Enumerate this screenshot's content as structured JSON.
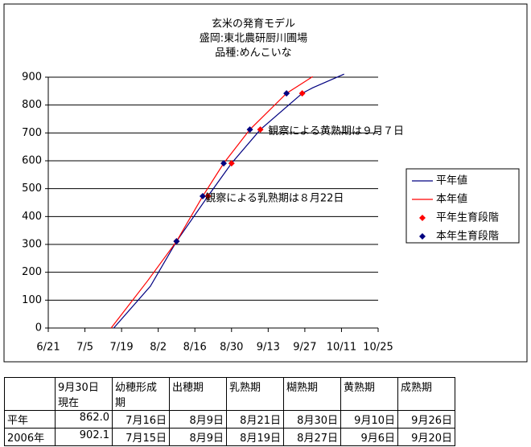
{
  "chart_data": {
    "type": "line",
    "title": [
      "玄米の発育モデル",
      "盛岡:東北農研厨川圃場",
      "品種:めんこいな"
    ],
    "xlim": [
      "6/21",
      "10/25"
    ],
    "xticks": [
      "6/21",
      "7/5",
      "7/19",
      "8/2",
      "8/16",
      "8/30",
      "9/13",
      "9/27",
      "10/11",
      "10/25"
    ],
    "ylim": [
      0,
      900
    ],
    "yticks": [
      0,
      100,
      200,
      300,
      400,
      500,
      600,
      700,
      800,
      900
    ],
    "grid": true,
    "legend": "right",
    "series": [
      {
        "name": "平年値",
        "color": "#000080",
        "mode": "line",
        "x": [
          "7/16",
          "7/30",
          "8/9",
          "8/21",
          "8/30",
          "9/10",
          "9/26",
          "9/30",
          "10/12"
        ],
        "values": [
          0,
          150,
          311,
          473,
          591,
          712,
          842,
          862,
          911
        ]
      },
      {
        "name": "本年値",
        "color": "#ff0000",
        "mode": "line",
        "x": [
          "7/15",
          "7/29",
          "8/9",
          "8/19",
          "8/27",
          "9/6",
          "9/20",
          "9/30"
        ],
        "values": [
          0,
          170,
          311,
          473,
          591,
          712,
          842,
          902
        ]
      },
      {
        "name": "平年生育段階",
        "color": "#ff0000",
        "mode": "diamond",
        "x": [
          "8/9",
          "8/21",
          "8/30",
          "9/10",
          "9/26"
        ],
        "values": [
          311,
          473,
          591,
          712,
          842
        ]
      },
      {
        "name": "本年生育段階",
        "color": "#000080",
        "mode": "diamond",
        "x": [
          "8/9",
          "8/19",
          "8/27",
          "9/6",
          "9/20"
        ],
        "values": [
          311,
          473,
          591,
          712,
          842
        ]
      }
    ],
    "annotations": [
      {
        "text": "観察による黄熟期は９月７日",
        "x": "9/13",
        "y": 705
      },
      {
        "text": "観察による乳熟期は８月22日",
        "x": "8/20",
        "y": 465
      }
    ]
  },
  "table": {
    "header": [
      "",
      "9月30日\n現在",
      "幼穂形成\n期",
      "出穂期",
      "乳熟期",
      "糊熟期",
      "黄熟期",
      "成熟期"
    ],
    "rows": [
      [
        "平年",
        "862.0",
        "7月16日",
        "8月9日",
        "8月21日",
        "8月30日",
        "9月10日",
        "9月26日"
      ],
      [
        "2006年",
        "902.1",
        "7月15日",
        "8月9日",
        "8月19日",
        "8月27日",
        "9月6日",
        "9月20日"
      ]
    ]
  }
}
